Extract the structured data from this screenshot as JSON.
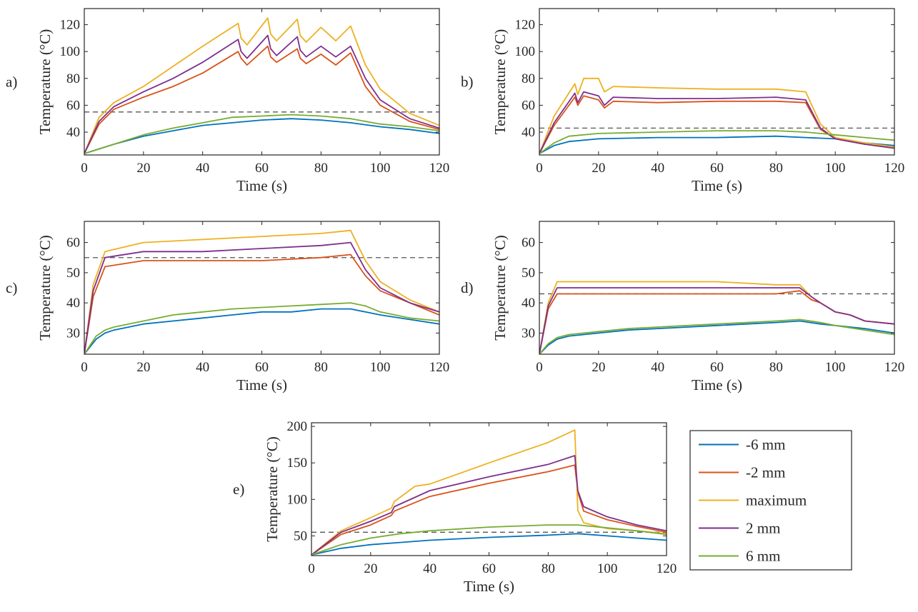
{
  "figure": {
    "legend": [
      {
        "label": "-6 mm",
        "color": "#0072BD"
      },
      {
        "label": "-2 mm",
        "color": "#D95319"
      },
      {
        "label": "maximum",
        "color": "#EDB120"
      },
      {
        "label": "2 mm",
        "color": "#7E2F8E"
      },
      {
        "label": "6 mm",
        "color": "#77AC30"
      }
    ],
    "threshold_color": "#555555"
  },
  "chart_data": [
    {
      "type": "line",
      "panel_label": "a)",
      "xlabel": "Time (s)",
      "ylabel": "Temperature (°C)",
      "xlim": [
        0,
        120
      ],
      "ylim": [
        23,
        132
      ],
      "xticks": [
        0,
        20,
        40,
        60,
        80,
        100,
        120
      ],
      "yticks": [
        40,
        60,
        80,
        100,
        120
      ],
      "threshold": 55,
      "series": [
        {
          "name": "-6 mm",
          "x": [
            0,
            10,
            20,
            30,
            40,
            50,
            60,
            70,
            80,
            90,
            100,
            110,
            120
          ],
          "y": [
            24,
            31,
            37,
            41,
            45,
            47,
            49,
            50,
            49,
            47,
            44,
            42,
            39
          ]
        },
        {
          "name": "-2 mm",
          "x": [
            0,
            5,
            10,
            20,
            30,
            40,
            52,
            53,
            55,
            62,
            63,
            65,
            72,
            73,
            75,
            80,
            85,
            90,
            95,
            100,
            110,
            120
          ],
          "y": [
            24,
            46,
            57,
            66,
            74,
            84,
            100,
            95,
            90,
            104,
            96,
            92,
            102,
            95,
            91,
            98,
            90,
            99,
            74,
            60,
            48,
            42
          ]
        },
        {
          "name": "maximum",
          "x": [
            0,
            5,
            10,
            20,
            30,
            40,
            52,
            53,
            55,
            62,
            63,
            65,
            72,
            73,
            75,
            80,
            85,
            90,
            95,
            100,
            110,
            120
          ],
          "y": [
            24,
            51,
            62,
            74,
            89,
            104,
            121,
            110,
            105,
            125,
            113,
            108,
            124,
            112,
            107,
            118,
            108,
            119,
            90,
            72,
            54,
            45
          ]
        },
        {
          "name": "2 mm",
          "x": [
            0,
            5,
            10,
            20,
            30,
            40,
            52,
            53,
            55,
            62,
            63,
            65,
            72,
            73,
            75,
            80,
            85,
            90,
            95,
            100,
            110,
            120
          ],
          "y": [
            24,
            48,
            59,
            70,
            80,
            92,
            109,
            100,
            95,
            112,
            102,
            97,
            111,
            101,
            96,
            104,
            96,
            104,
            80,
            64,
            50,
            43
          ]
        },
        {
          "name": "6 mm",
          "x": [
            0,
            10,
            20,
            30,
            40,
            50,
            60,
            70,
            80,
            90,
            100,
            110,
            120
          ],
          "y": [
            24,
            31,
            38,
            43,
            47,
            51,
            52,
            53,
            52,
            50,
            46,
            44,
            41
          ]
        }
      ]
    },
    {
      "type": "line",
      "panel_label": "b)",
      "xlabel": "Time (s)",
      "ylabel": "Temperature (°C)",
      "xlim": [
        0,
        120
      ],
      "ylim": [
        23,
        132
      ],
      "xticks": [
        0,
        20,
        40,
        60,
        80,
        100,
        120
      ],
      "yticks": [
        40,
        60,
        80,
        100,
        120
      ],
      "threshold": 43,
      "series": [
        {
          "name": "-6 mm",
          "x": [
            0,
            5,
            10,
            20,
            40,
            60,
            80,
            90,
            100,
            110,
            120
          ],
          "y": [
            24,
            30,
            33,
            35,
            36,
            36,
            37,
            36,
            35,
            32,
            30
          ]
        },
        {
          "name": "-2 mm",
          "x": [
            0,
            5,
            12,
            13,
            15,
            20,
            22,
            25,
            40,
            60,
            80,
            90,
            95,
            100,
            110,
            120
          ],
          "y": [
            24,
            45,
            66,
            60,
            67,
            64,
            58,
            63,
            62,
            63,
            63,
            62,
            42,
            35,
            31,
            29
          ]
        },
        {
          "name": "maximum",
          "x": [
            0,
            5,
            12,
            13,
            15,
            20,
            22,
            25,
            40,
            60,
            80,
            90,
            95,
            100,
            110,
            120
          ],
          "y": [
            24,
            52,
            76,
            68,
            80,
            80,
            70,
            74,
            73,
            72,
            72,
            70,
            46,
            36,
            32,
            29
          ]
        },
        {
          "name": "2 mm",
          "x": [
            0,
            5,
            12,
            13,
            15,
            20,
            22,
            25,
            40,
            60,
            80,
            90,
            95,
            100,
            110,
            120
          ],
          "y": [
            24,
            47,
            69,
            62,
            70,
            67,
            60,
            66,
            65,
            65,
            66,
            64,
            43,
            35,
            31,
            28
          ]
        },
        {
          "name": "6 mm",
          "x": [
            0,
            5,
            10,
            20,
            40,
            60,
            80,
            90,
            100,
            110,
            120
          ],
          "y": [
            24,
            32,
            37,
            39,
            40,
            41,
            41,
            40,
            38,
            36,
            34
          ]
        }
      ]
    },
    {
      "type": "line",
      "panel_label": "c)",
      "xlabel": "Time (s)",
      "ylabel": "Temperature (°C)",
      "xlim": [
        0,
        120
      ],
      "ylim": [
        23,
        67
      ],
      "xticks": [
        0,
        20,
        40,
        60,
        80,
        100,
        120
      ],
      "yticks": [
        30,
        40,
        50,
        60
      ],
      "threshold": 55,
      "series": [
        {
          "name": "-6 mm",
          "x": [
            0,
            4,
            7,
            10,
            20,
            30,
            40,
            50,
            60,
            70,
            80,
            90,
            95,
            100,
            110,
            120
          ],
          "y": [
            23,
            28,
            30,
            31,
            33,
            34,
            35,
            36,
            37,
            37,
            38,
            38,
            37,
            36,
            34.5,
            33
          ]
        },
        {
          "name": "-2 mm",
          "x": [
            0,
            3,
            7,
            20,
            40,
            60,
            80,
            90,
            95,
            100,
            110,
            120
          ],
          "y": [
            23,
            42,
            52,
            54,
            54,
            54,
            55,
            56,
            49,
            44,
            40,
            36
          ]
        },
        {
          "name": "maximum",
          "x": [
            0,
            3,
            7,
            20,
            40,
            60,
            80,
            90,
            95,
            100,
            110,
            120
          ],
          "y": [
            23,
            46,
            57,
            60,
            61,
            62,
            63,
            64,
            54,
            47,
            41,
            37
          ]
        },
        {
          "name": "2 mm",
          "x": [
            0,
            3,
            7,
            20,
            40,
            60,
            80,
            90,
            95,
            100,
            110,
            120
          ],
          "y": [
            23,
            44,
            55,
            57,
            57,
            58,
            59,
            60,
            51,
            45,
            40,
            37
          ]
        },
        {
          "name": "6 mm",
          "x": [
            0,
            4,
            7,
            10,
            20,
            30,
            40,
            50,
            60,
            70,
            80,
            90,
            95,
            100,
            110,
            120
          ],
          "y": [
            23,
            29,
            31,
            32,
            34,
            36,
            37,
            38,
            38.5,
            39,
            39.5,
            40,
            39,
            37,
            35,
            34
          ]
        }
      ]
    },
    {
      "type": "line",
      "panel_label": "d)",
      "xlabel": "Time (s)",
      "ylabel": "Temperature (°C)",
      "xlim": [
        0,
        120
      ],
      "ylim": [
        23,
        67
      ],
      "xticks": [
        0,
        20,
        40,
        60,
        80,
        100,
        120
      ],
      "yticks": [
        30,
        40,
        50,
        60
      ],
      "threshold": 43,
      "series": [
        {
          "name": "-6 mm",
          "x": [
            0,
            3,
            6,
            10,
            20,
            30,
            40,
            50,
            60,
            70,
            80,
            88,
            95,
            100,
            110,
            120
          ],
          "y": [
            23,
            26,
            28,
            29,
            30,
            31,
            31.5,
            32,
            32.5,
            33,
            33.5,
            34,
            33,
            32.5,
            31.5,
            30
          ]
        },
        {
          "name": "-2 mm",
          "x": [
            0,
            3,
            6,
            20,
            40,
            60,
            80,
            88,
            92,
            95,
            100,
            105,
            110,
            120
          ],
          "y": [
            23,
            38,
            43,
            43,
            43,
            43,
            43,
            44,
            41,
            40,
            37,
            36,
            34,
            33
          ]
        },
        {
          "name": "maximum",
          "x": [
            0,
            3,
            6,
            20,
            40,
            60,
            80,
            88,
            92,
            95,
            100,
            105,
            110,
            120
          ],
          "y": [
            23,
            40,
            47,
            47,
            47,
            47,
            46,
            46,
            42,
            40,
            37,
            36,
            34,
            33
          ]
        },
        {
          "name": "2 mm",
          "x": [
            0,
            3,
            6,
            20,
            40,
            60,
            80,
            88,
            92,
            95,
            100,
            105,
            110,
            120
          ],
          "y": [
            23,
            39,
            45,
            45,
            45,
            45,
            45,
            45,
            42,
            40,
            37,
            36,
            34,
            33
          ]
        },
        {
          "name": "6 mm",
          "x": [
            0,
            3,
            6,
            10,
            20,
            30,
            40,
            50,
            60,
            70,
            80,
            88,
            95,
            100,
            110,
            120
          ],
          "y": [
            23,
            26.5,
            28.5,
            29.5,
            30.5,
            31.5,
            32,
            32.5,
            33,
            33.5,
            34,
            34.5,
            33.5,
            32.5,
            31,
            29.5
          ]
        }
      ]
    },
    {
      "type": "line",
      "panel_label": "e)",
      "xlabel": "Time (s)",
      "ylabel": "Temperature (°C)",
      "xlim": [
        0,
        120
      ],
      "ylim": [
        23,
        205
      ],
      "xticks": [
        0,
        20,
        40,
        60,
        80,
        100,
        120
      ],
      "yticks": [
        50,
        100,
        150,
        200
      ],
      "threshold": 55,
      "series": [
        {
          "name": "-6 mm",
          "x": [
            0,
            10,
            20,
            30,
            40,
            60,
            80,
            90,
            100,
            110,
            120
          ],
          "y": [
            24,
            33,
            38,
            41,
            44,
            48,
            51,
            53,
            50,
            47,
            44
          ]
        },
        {
          "name": "-2 mm",
          "x": [
            0,
            10,
            20,
            27,
            28,
            40,
            60,
            80,
            89,
            90,
            92,
            100,
            110,
            120
          ],
          "y": [
            24,
            52,
            65,
            78,
            84,
            104,
            122,
            138,
            147,
            110,
            84,
            72,
            63,
            55
          ]
        },
        {
          "name": "maximum",
          "x": [
            0,
            10,
            20,
            27,
            28,
            35,
            40,
            60,
            80,
            89,
            90,
            92,
            100,
            110,
            120
          ],
          "y": [
            24,
            57,
            75,
            88,
            97,
            118,
            121,
            150,
            178,
            195,
            85,
            68,
            60,
            57,
            53
          ]
        },
        {
          "name": "2 mm",
          "x": [
            0,
            10,
            20,
            27,
            28,
            40,
            60,
            80,
            89,
            90,
            92,
            100,
            110,
            120
          ],
          "y": [
            24,
            55,
            70,
            82,
            90,
            112,
            131,
            148,
            160,
            112,
            90,
            76,
            65,
            57
          ]
        },
        {
          "name": "6 mm",
          "x": [
            0,
            10,
            20,
            30,
            40,
            60,
            80,
            90,
            100,
            110,
            120
          ],
          "y": [
            24,
            38,
            47,
            53,
            57,
            62,
            65,
            65,
            61,
            57,
            52
          ]
        }
      ]
    }
  ]
}
